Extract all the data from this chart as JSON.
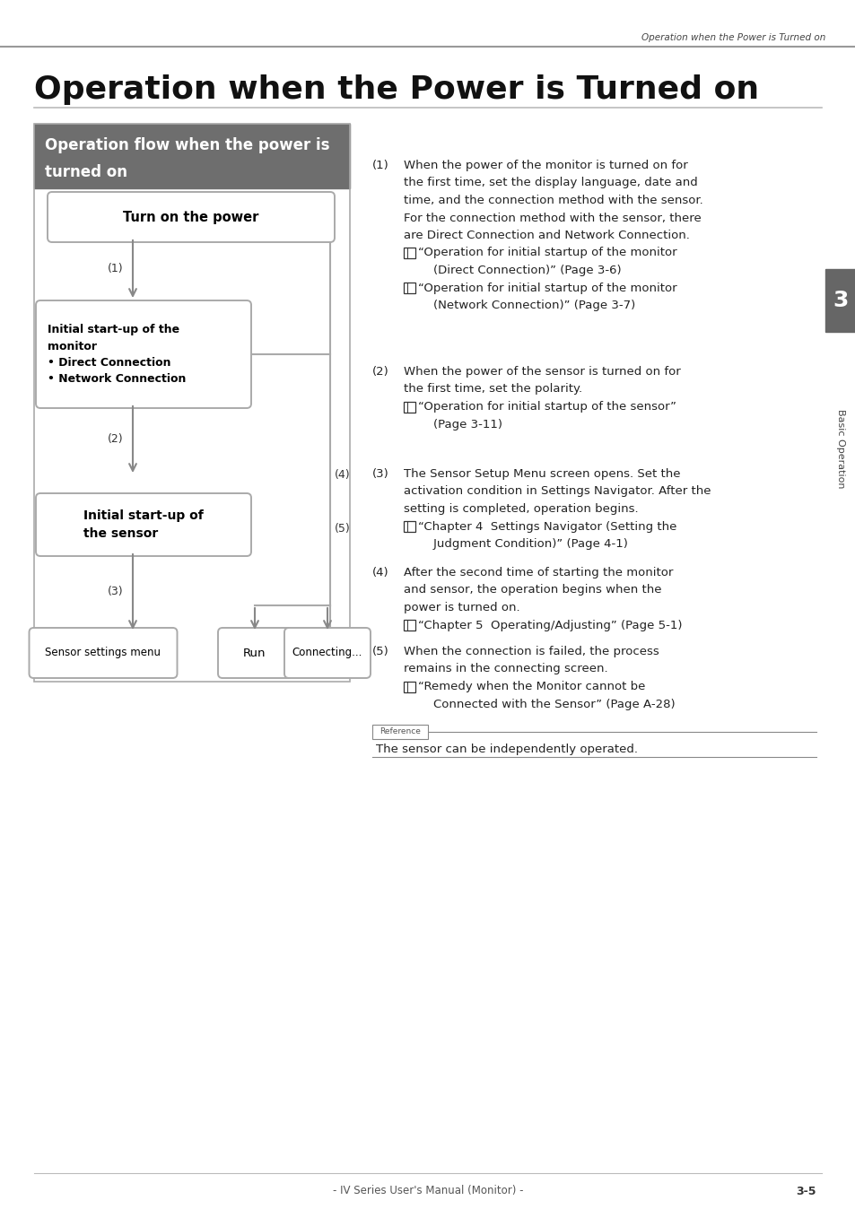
{
  "page_header": "Operation when the Power is Turned on",
  "main_title": "Operation when the Power is Turned on",
  "section_title_line1": "Operation flow when the power is",
  "section_title_line2": "turned on",
  "section_title_bg": "#6e6e6e",
  "flowchart_bg": "#ffffff",
  "box_border_color": "#aaaaaa",
  "numbered_items": [
    {
      "num": "(1)",
      "body_lines": [
        "When the power of the monitor is turned on for",
        "the first time, set the display language, date and",
        "time, and the connection method with the sensor.",
        "For the connection method with the sensor, there",
        "are Direct Connection and Network Connection."
      ],
      "refs": [
        [
          true,
          "“Operation for initial startup of the monitor"
        ],
        [
          false,
          "    (Direct Connection)” (Page 3-6)"
        ],
        [
          true,
          "“Operation for initial startup of the monitor"
        ],
        [
          false,
          "    (Network Connection)” (Page 3-7)"
        ]
      ]
    },
    {
      "num": "(2)",
      "body_lines": [
        "When the power of the sensor is turned on for",
        "the first time, set the polarity."
      ],
      "refs": [
        [
          true,
          "“Operation for initial startup of the sensor”"
        ],
        [
          false,
          "    (Page 3-11)"
        ]
      ]
    },
    {
      "num": "(3)",
      "body_lines": [
        "The Sensor Setup Menu screen opens. Set the",
        "activation condition in Settings Navigator. After the",
        "setting is completed, operation begins."
      ],
      "refs": [
        [
          true,
          "“Chapter 4  Settings Navigator (Setting the"
        ],
        [
          false,
          "    Judgment Condition)” (Page 4-1)"
        ]
      ]
    },
    {
      "num": "(4)",
      "body_lines": [
        "After the second time of starting the monitor",
        "and sensor, the operation begins when the",
        "power is turned on."
      ],
      "refs": [
        [
          true,
          "“Chapter 5  Operating/Adjusting” (Page 5-1)"
        ]
      ]
    },
    {
      "num": "(5)",
      "body_lines": [
        "When the connection is failed, the process",
        "remains in the connecting screen."
      ],
      "refs": [
        [
          true,
          "“Remedy when the Monitor cannot be"
        ],
        [
          false,
          "    Connected with the Sensor” (Page A-28)"
        ]
      ]
    }
  ],
  "reference_text": "The sensor can be independently operated.",
  "sidebar_text": "Basic Operation",
  "sidebar_number": "3",
  "footer_left": "- IV Series User's Manual (Monitor) -",
  "footer_right": "3-5",
  "top_header": "Operation when the Power is Turned on"
}
